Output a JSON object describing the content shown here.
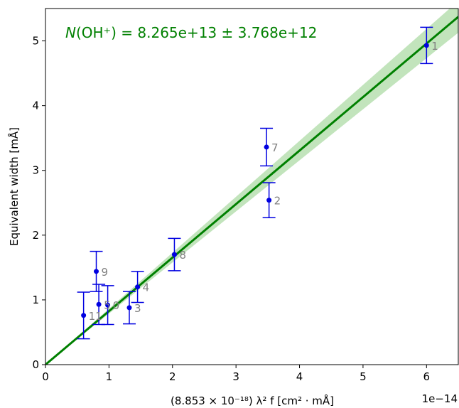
{
  "chart_data": {
    "type": "scatter",
    "title": "",
    "annotation": {
      "symbol": "N",
      "text_rest": "(OH⁺) = 8.265e+13 ± 3.768e+12",
      "color": "#008000"
    },
    "xlabel": "(8.853 × 10⁻¹⁸) λ² f  [cm² · mÅ]",
    "ylabel": "Equivalent width [mÅ]",
    "x_offset_label": "1e−14",
    "x_scale": 1e-14,
    "xlim": [
      0,
      6.5
    ],
    "ylim": [
      0,
      5.5
    ],
    "xticks": [
      0,
      1,
      2,
      3,
      4,
      5,
      6
    ],
    "yticks": [
      0,
      1,
      2,
      3,
      4,
      5
    ],
    "points": [
      {
        "label": "1",
        "x": 6.0,
        "y": 4.93,
        "yerr": 0.28
      },
      {
        "label": "2",
        "x": 3.52,
        "y": 2.54,
        "yerr": 0.27
      },
      {
        "label": "3",
        "x": 1.32,
        "y": 0.88,
        "yerr": 0.25
      },
      {
        "label": "4",
        "x": 1.45,
        "y": 1.2,
        "yerr": 0.24
      },
      {
        "label": "7",
        "x": 3.48,
        "y": 3.36,
        "yerr": 0.29
      },
      {
        "label": "8",
        "x": 2.03,
        "y": 1.7,
        "yerr": 0.25
      },
      {
        "label": "9",
        "x": 0.8,
        "y": 1.44,
        "yerr": 0.31
      },
      {
        "label": "0",
        "x": 0.98,
        "y": 0.92,
        "yerr": 0.3
      },
      {
        "label": "5",
        "x": 0.84,
        "y": 0.93,
        "yerr": 0.31
      },
      {
        "label": "11",
        "x": 0.6,
        "y": 0.76,
        "yerr": 0.36
      }
    ],
    "fit": {
      "slope": 0.8265,
      "slope_err": 0.03768,
      "line_color": "#008000",
      "band_color": "#a8d8a0"
    },
    "point_color": "#0000e0",
    "label_color": "#808080"
  }
}
